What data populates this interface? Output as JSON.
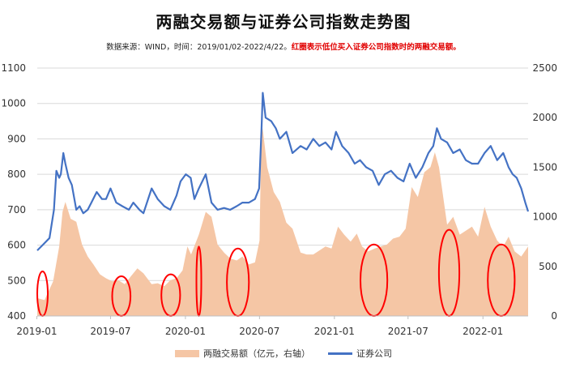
{
  "chart_data": {
    "type": "area",
    "title": "两融交易额与证券公司指数走势图",
    "subtitle_source": "数据来源：WIND，时间：2019/01/02-2022/4/22。",
    "subtitle_note": "红圈表示低位买入证券公司指数时的两融交易额。",
    "x_ticks": [
      "2019-01",
      "2019-07",
      "2020-01",
      "2020-07",
      "2021-01",
      "2021-07",
      "2022-01"
    ],
    "y_left": {
      "ticks": [
        400,
        500,
        600,
        700,
        800,
        900,
        1000,
        1100
      ],
      "lim": [
        400,
        1100
      ]
    },
    "y_right": {
      "ticks": [
        0,
        500,
        1000,
        1500,
        2000,
        2500
      ],
      "lim": [
        0,
        2500
      ]
    },
    "legend_position": "bottom",
    "series": [
      {
        "name": "两融交易额（亿元，右轴）",
        "kind": "area",
        "axis": "right",
        "color": "#f5c6a5",
        "x": [
          "2019-01-02",
          "2019-01-20",
          "2019-02-10",
          "2019-02-25",
          "2019-03-05",
          "2019-03-12",
          "2019-03-25",
          "2019-04-08",
          "2019-04-22",
          "2019-05-06",
          "2019-05-20",
          "2019-06-05",
          "2019-06-20",
          "2019-07-05",
          "2019-07-20",
          "2019-08-05",
          "2019-08-20",
          "2019-09-05",
          "2019-09-20",
          "2019-10-10",
          "2019-10-25",
          "2019-11-10",
          "2019-11-25",
          "2019-12-10",
          "2019-12-25",
          "2020-01-06",
          "2020-01-15",
          "2020-02-03",
          "2020-02-20",
          "2020-03-05",
          "2020-03-20",
          "2020-04-05",
          "2020-04-20",
          "2020-05-06",
          "2020-05-20",
          "2020-06-05",
          "2020-06-20",
          "2020-07-01",
          "2020-07-06",
          "2020-07-10",
          "2020-07-20",
          "2020-08-05",
          "2020-08-20",
          "2020-09-05",
          "2020-09-20",
          "2020-10-10",
          "2020-10-25",
          "2020-11-10",
          "2020-11-25",
          "2020-12-10",
          "2020-12-25",
          "2021-01-10",
          "2021-01-25",
          "2021-02-10",
          "2021-02-25",
          "2021-03-10",
          "2021-03-25",
          "2021-04-10",
          "2021-04-25",
          "2021-05-10",
          "2021-05-25",
          "2021-06-10",
          "2021-06-25",
          "2021-07-10",
          "2021-07-25",
          "2021-08-10",
          "2021-08-25",
          "2021-09-05",
          "2021-09-15",
          "2021-10-05",
          "2021-10-20",
          "2021-11-05",
          "2021-11-20",
          "2021-12-05",
          "2021-12-20",
          "2022-01-05",
          "2022-01-20",
          "2022-02-05",
          "2022-02-20",
          "2022-03-05",
          "2022-03-20",
          "2022-04-05",
          "2022-04-22"
        ],
        "values": [
          180,
          160,
          350,
          700,
          1050,
          1150,
          980,
          950,
          720,
          600,
          520,
          420,
          380,
          350,
          360,
          320,
          400,
          480,
          430,
          320,
          330,
          300,
          360,
          380,
          460,
          700,
          620,
          820,
          1050,
          1000,
          720,
          640,
          580,
          560,
          600,
          520,
          540,
          760,
          1950,
          1850,
          1500,
          1250,
          1150,
          940,
          880,
          640,
          620,
          620,
          660,
          700,
          680,
          900,
          820,
          750,
          830,
          700,
          650,
          680,
          700,
          720,
          780,
          800,
          880,
          1300,
          1200,
          1450,
          1500,
          1650,
          1500,
          920,
          1000,
          820,
          860,
          900,
          800,
          1100,
          900,
          760,
          700,
          800,
          650,
          600,
          700
        ]
      },
      {
        "name": "证券公司",
        "kind": "line",
        "axis": "left",
        "color": "#4472c4",
        "x": [
          "2019-01-02",
          "2019-01-15",
          "2019-02-01",
          "2019-02-12",
          "2019-02-18",
          "2019-02-25",
          "2019-03-01",
          "2019-03-07",
          "2019-03-12",
          "2019-03-20",
          "2019-03-28",
          "2019-04-08",
          "2019-04-16",
          "2019-04-25",
          "2019-05-06",
          "2019-05-15",
          "2019-05-28",
          "2019-06-10",
          "2019-06-20",
          "2019-07-01",
          "2019-07-15",
          "2019-07-30",
          "2019-08-15",
          "2019-08-26",
          "2019-09-10",
          "2019-09-20",
          "2019-10-10",
          "2019-10-25",
          "2019-11-10",
          "2019-11-25",
          "2019-12-10",
          "2019-12-20",
          "2020-01-02",
          "2020-01-14",
          "2020-01-23",
          "2020-02-03",
          "2020-02-20",
          "2020-03-05",
          "2020-03-20",
          "2020-04-05",
          "2020-04-20",
          "2020-05-06",
          "2020-05-20",
          "2020-06-05",
          "2020-06-20",
          "2020-06-30",
          "2020-07-06",
          "2020-07-09",
          "2020-07-16",
          "2020-07-30",
          "2020-08-10",
          "2020-08-20",
          "2020-09-05",
          "2020-09-20",
          "2020-10-10",
          "2020-10-25",
          "2020-11-10",
          "2020-11-25",
          "2020-12-10",
          "2020-12-25",
          "2021-01-05",
          "2021-01-20",
          "2021-02-05",
          "2021-02-20",
          "2021-03-05",
          "2021-03-20",
          "2021-04-05",
          "2021-04-20",
          "2021-05-05",
          "2021-05-20",
          "2021-06-05",
          "2021-06-20",
          "2021-07-05",
          "2021-07-20",
          "2021-08-05",
          "2021-08-20",
          "2021-09-01",
          "2021-09-10",
          "2021-09-20",
          "2021-10-05",
          "2021-10-20",
          "2021-11-05",
          "2021-11-20",
          "2021-12-05",
          "2021-12-20",
          "2022-01-05",
          "2022-01-20",
          "2022-02-05",
          "2022-02-20",
          "2022-03-05",
          "2022-03-15",
          "2022-03-25",
          "2022-04-05",
          "2022-04-15",
          "2022-04-22"
        ],
        "values": [
          585,
          600,
          620,
          700,
          810,
          790,
          800,
          860,
          830,
          790,
          770,
          700,
          710,
          690,
          700,
          720,
          750,
          730,
          730,
          760,
          720,
          710,
          700,
          720,
          700,
          690,
          760,
          730,
          710,
          700,
          740,
          780,
          800,
          790,
          730,
          760,
          800,
          720,
          700,
          705,
          700,
          710,
          720,
          720,
          730,
          760,
          930,
          1030,
          960,
          950,
          930,
          900,
          920,
          860,
          880,
          870,
          900,
          880,
          890,
          870,
          920,
          880,
          860,
          830,
          840,
          820,
          810,
          770,
          800,
          810,
          790,
          780,
          830,
          790,
          820,
          860,
          880,
          930,
          900,
          890,
          860,
          870,
          840,
          830,
          830,
          860,
          880,
          840,
          860,
          820,
          800,
          790,
          760,
          720,
          695
        ]
      }
    ],
    "annotations": {
      "circles": [
        {
          "x_start": "2019-01-02",
          "x_end": "2019-01-28",
          "y_top": 450,
          "y_bottom": 0
        },
        {
          "x_start": "2019-07-05",
          "x_end": "2019-08-19",
          "y_top": 400,
          "y_bottom": 0
        },
        {
          "x_start": "2019-11-03",
          "x_end": "2019-12-19",
          "y_top": 420,
          "y_bottom": 0
        },
        {
          "x_start": "2020-01-28",
          "x_end": "2020-02-09",
          "y_top": 700,
          "y_bottom": 0
        },
        {
          "x_start": "2020-04-12",
          "x_end": "2020-06-05",
          "y_top": 680,
          "y_bottom": 0
        },
        {
          "x_start": "2021-03-06",
          "x_end": "2021-05-11",
          "y_top": 720,
          "y_bottom": 0
        },
        {
          "x_start": "2021-09-15",
          "x_end": "2021-11-04",
          "y_top": 870,
          "y_bottom": 0
        },
        {
          "x_start": "2022-01-13",
          "x_end": "2022-03-20",
          "y_top": 720,
          "y_bottom": 0
        }
      ]
    },
    "grid": true
  }
}
